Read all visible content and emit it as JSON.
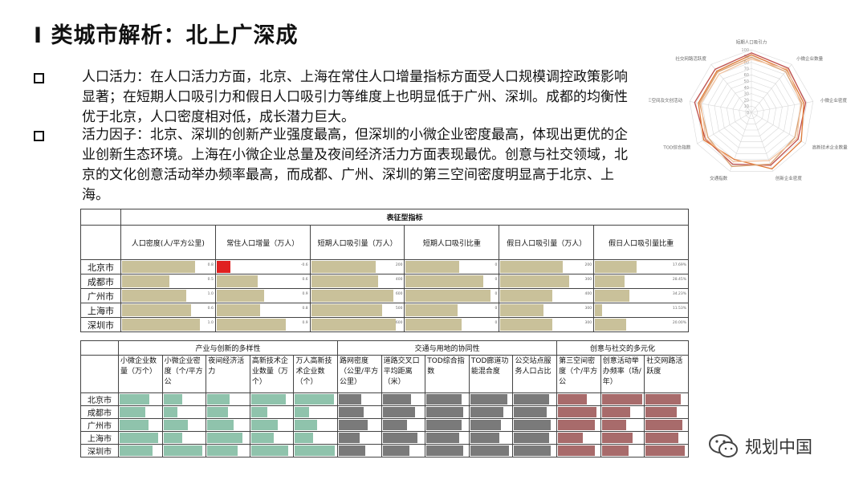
{
  "title": "I 类城市解析：北上广深成",
  "bullets": [
    "人口活力：在人口活力方面，北京、上海在常住人口增量指标方面受人口规模调控政策影响显著；在短期人口吸引力和假日人口吸引力等维度上也明显低于广州、深圳。成都的均衡性优于北京，人口密度相对低，成长潜力巨大。",
    "活力因子：北京、深圳的创新产业强度最高，但深圳的小微企业密度最高，体现出更优的企业创新生态环境。上海在小微企业总量及夜间经济活力方面表现最优。创意与社交领域，北京的文化创意活动举办频率最高，而成都、广州、深圳的第三空间密度明显高于北京、上海。"
  ],
  "table1": {
    "group": "表征型指标",
    "columns": [
      "人口密度(人/平方公里)",
      "常住人口增量（万人）",
      "短期人口吸引量（万人）",
      "短期人口吸引比重",
      "假日人口吸引量（万人）",
      "假日人口吸引量比重"
    ],
    "cities": [
      "北京市",
      "成都市",
      "广州市",
      "上海市",
      "深圳市"
    ],
    "bar_color": "#c9c19a",
    "neg_color": "#e02020",
    "values": [
      [
        0.85,
        -0.15,
        0.75,
        0.62,
        0.72,
        0.48
      ],
      [
        0.55,
        0.48,
        0.78,
        0.9,
        0.8,
        0.34
      ],
      [
        0.74,
        0.55,
        0.95,
        0.98,
        0.6,
        0.4
      ],
      [
        0.8,
        0.5,
        0.82,
        0.6,
        0.5,
        0.08
      ],
      [
        0.9,
        0.8,
        0.98,
        0.65,
        0.6,
        0.36
      ]
    ],
    "labels": [
      [
        "0.8",
        "-0.6",
        "200",
        "0",
        "200",
        "17.69%"
      ],
      [
        "0.5",
        "0.6",
        "400",
        "0",
        "300",
        "28.45%"
      ],
      [
        "1.0",
        "0.9",
        "600",
        "0",
        "400",
        "34.23%"
      ],
      [
        "0.6",
        "0.8",
        "500",
        "0",
        "300",
        "11.53%"
      ],
      [
        "1.0",
        "0.9",
        "600",
        "0",
        "300",
        "20.00%"
      ]
    ]
  },
  "table2": {
    "groups": [
      {
        "name": "产业与创新的多样性",
        "span": 5
      },
      {
        "name": "交通与用地的协同性",
        "span": 5
      },
      {
        "name": "创意与社交的多元化",
        "span": 3
      }
    ],
    "columns": [
      "小微企业数量（万个）",
      "小微企业密度（个/平方公",
      "夜间经济活力",
      "高新技术企业数量（万个）",
      "万人高新技术企业数（个）",
      "路网密度（公里/平方公里）",
      "道路交叉口平均距离（米）",
      "TOD综合指数",
      "TOD廊道功能混合度",
      "公交站点服务人口占比",
      "第三空间密度（个/平方公",
      "创意活动举办频率（场/年）",
      "社交网路活跃度"
    ],
    "colors": [
      "#8fc3ac",
      "#8fc3ac",
      "#8fc3ac",
      "#8fc3ac",
      "#8fc3ac",
      "#7a7a7a",
      "#7a7a7a",
      "#7a7a7a",
      "#7a7a7a",
      "#7a7a7a",
      "#a86b6b",
      "#a86b6b",
      "#a86b6b"
    ],
    "cities": [
      "北京市",
      "成都市",
      "广州市",
      "上海市",
      "深圳市"
    ],
    "values": [
      [
        0.72,
        0.45,
        0.55,
        0.85,
        0.95,
        0.55,
        0.7,
        0.85,
        0.9,
        0.85,
        0.7,
        0.98,
        0.85
      ],
      [
        0.62,
        0.35,
        0.5,
        0.4,
        0.35,
        0.6,
        0.8,
        0.9,
        0.8,
        0.8,
        0.95,
        0.7,
        0.75
      ],
      [
        0.7,
        0.6,
        0.65,
        0.65,
        0.55,
        0.7,
        0.6,
        0.85,
        0.75,
        0.9,
        0.9,
        0.6,
        0.9
      ],
      [
        0.95,
        0.45,
        0.85,
        0.55,
        0.45,
        0.5,
        0.85,
        0.8,
        0.7,
        0.85,
        0.6,
        0.75,
        0.8
      ],
      [
        0.8,
        0.95,
        0.75,
        0.9,
        0.98,
        0.65,
        0.65,
        0.9,
        0.95,
        0.9,
        0.9,
        0.65,
        0.95
      ]
    ]
  },
  "radar": {
    "axes": [
      "短期人口吸引力",
      "小微企业数量",
      "小微企业密度",
      "高新技术企业数量",
      "创新企业密度",
      "交通指数",
      "TOD综合指数",
      "第三空间及文创活动",
      "社交网路活跃度"
    ],
    "ticks": [
      "100",
      "90",
      "80",
      "70",
      "60",
      "50",
      "40",
      "30",
      "20",
      "10",
      "0"
    ],
    "series": [
      {
        "color": "#c0504d",
        "values": [
          95,
          92,
          88,
          86,
          90,
          88,
          85,
          92,
          90
        ]
      },
      {
        "color": "#e07b39",
        "values": [
          92,
          88,
          85,
          92,
          96,
          80,
          88,
          86,
          86
        ]
      },
      {
        "color": "#d9a273",
        "values": [
          88,
          85,
          82,
          80,
          88,
          92,
          80,
          84,
          84
        ]
      },
      {
        "color": "#f2c3a0",
        "values": [
          85,
          90,
          80,
          84,
          82,
          84,
          84,
          82,
          80
        ]
      }
    ]
  },
  "logo_text": "规划中国"
}
